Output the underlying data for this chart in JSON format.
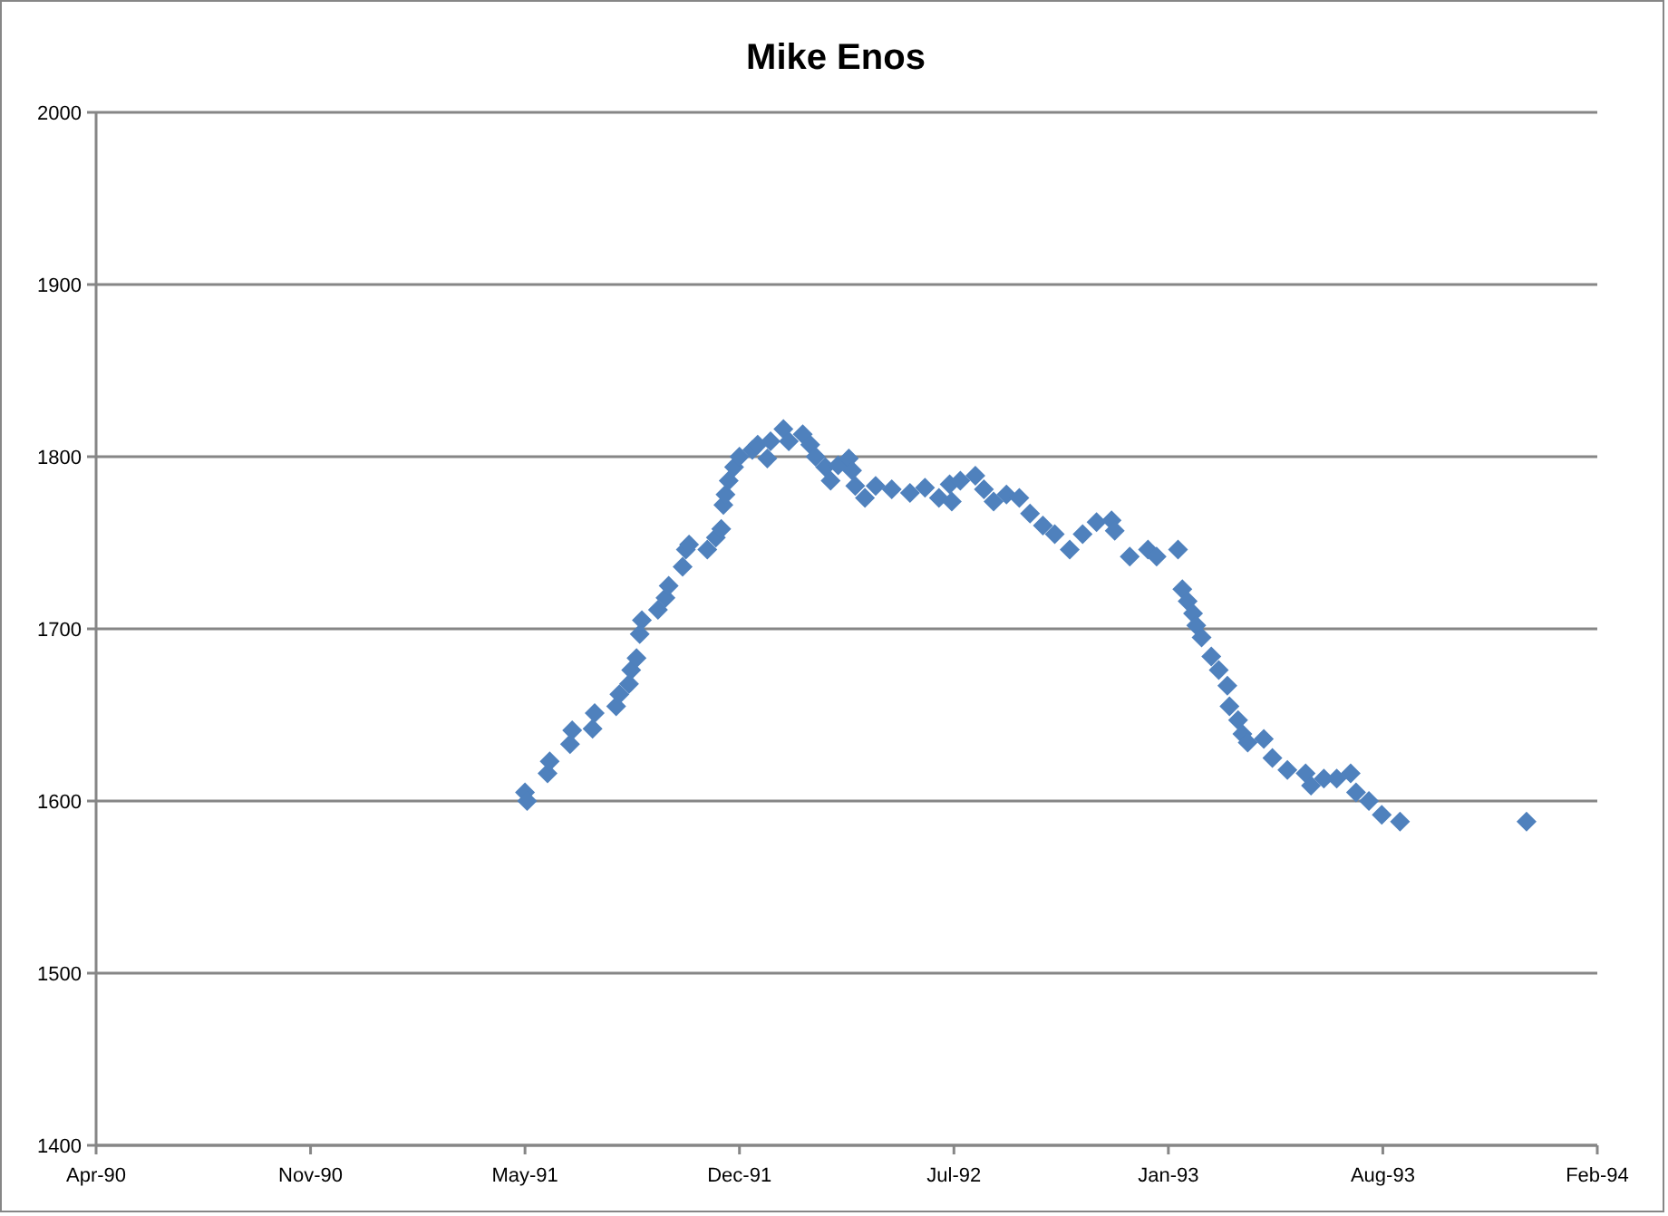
{
  "chart_data": {
    "type": "scatter",
    "title": "Mike Enos",
    "color": "#4f81bd",
    "marker": "diamond",
    "grid": "y",
    "x": [
      "1991-05-29",
      "1991-05-31",
      "1991-06-19",
      "1991-06-21",
      "1991-07-10",
      "1991-07-12",
      "1991-07-31",
      "1991-08-02",
      "1991-08-22",
      "1991-08-25",
      "1991-09-03",
      "1991-09-05",
      "1991-09-10",
      "1991-09-13",
      "1991-09-15",
      "1991-09-30",
      "1991-10-07",
      "1991-10-10",
      "1991-10-23",
      "1991-10-26",
      "1991-10-29",
      "1991-11-15",
      "1991-11-23",
      "1991-11-28",
      "1991-11-30",
      "1991-12-02",
      "1991-12-05",
      "1991-12-10",
      "1991-12-15",
      "1991-12-27",
      "1992-01-01",
      "1992-01-10",
      "1992-01-13",
      "1992-01-25",
      "1992-01-30",
      "1992-02-12",
      "1992-02-19",
      "1992-02-24",
      "1992-03-04",
      "1992-03-09",
      "1992-03-16",
      "1992-03-26",
      "1992-03-29",
      "1992-04-01",
      "1992-04-10",
      "1992-04-20",
      "1992-05-05",
      "1992-05-22",
      "1992-06-05",
      "1992-06-18",
      "1992-06-28",
      "1992-06-30",
      "1992-07-08",
      "1992-07-22",
      "1992-07-30",
      "1992-08-08",
      "1992-08-20",
      "1992-09-01",
      "1992-09-11",
      "1992-09-23",
      "1992-10-04",
      "1992-10-18",
      "1992-10-30",
      "1992-11-12",
      "1992-11-26",
      "1992-11-29",
      "1992-12-13",
      "1992-12-30",
      "1993-01-07",
      "1993-01-27",
      "1993-01-31",
      "1993-02-05",
      "1993-02-10",
      "1993-02-13",
      "1993-02-18",
      "1993-02-27",
      "1993-03-06",
      "1993-03-14",
      "1993-03-16",
      "1993-03-24",
      "1993-03-28",
      "1993-04-02",
      "1993-04-17",
      "1993-04-25",
      "1993-05-09",
      "1993-05-26",
      "1993-05-31",
      "1993-06-12",
      "1993-06-24",
      "1993-07-07",
      "1993-07-12",
      "1993-07-24",
      "1993-08-05",
      "1993-08-22",
      "1993-12-18"
    ],
    "values": [
      1605,
      1600,
      1616,
      1623,
      1633,
      1641,
      1642,
      1651,
      1655,
      1662,
      1668,
      1676,
      1683,
      1697,
      1705,
      1711,
      1718,
      1725,
      1736,
      1746,
      1749,
      1746,
      1753,
      1758,
      1772,
      1778,
      1786,
      1794,
      1800,
      1804,
      1807,
      1799,
      1809,
      1816,
      1809,
      1813,
      1807,
      1800,
      1794,
      1786,
      1795,
      1799,
      1792,
      1783,
      1776,
      1783,
      1781,
      1779,
      1782,
      1776,
      1784,
      1774,
      1786,
      1789,
      1781,
      1774,
      1778,
      1776,
      1767,
      1760,
      1755,
      1746,
      1755,
      1762,
      1763,
      1757,
      1742,
      1746,
      1742,
      1746,
      1723,
      1716,
      1709,
      1702,
      1695,
      1684,
      1676,
      1667,
      1655,
      1647,
      1639,
      1634,
      1636,
      1625,
      1618,
      1616,
      1609,
      1613,
      1613,
      1616,
      1605,
      1600,
      1592,
      1588,
      1588
    ],
    "xlim": [
      "1990-04-24",
      "1994-02-22"
    ],
    "xticks": [
      {
        "value": "1990-04-24",
        "label": "Apr-90"
      },
      {
        "value": "1990-11-10",
        "label": "Nov-90"
      },
      {
        "value": "1991-05-29",
        "label": "May-91"
      },
      {
        "value": "1991-12-15",
        "label": "Dec-91"
      },
      {
        "value": "1992-07-02",
        "label": "Jul-92"
      },
      {
        "value": "1993-01-18",
        "label": "Jan-93"
      },
      {
        "value": "1993-08-06",
        "label": "Aug-93"
      },
      {
        "value": "1994-02-22",
        "label": "Feb-94"
      }
    ],
    "ylim": [
      1400,
      2000
    ],
    "yticks": [
      1400,
      1500,
      1600,
      1700,
      1800,
      1900,
      2000
    ]
  }
}
